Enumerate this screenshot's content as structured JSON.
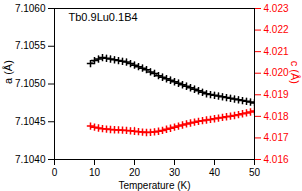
{
  "chart_data": {
    "type": "line",
    "title": "Tb0.9Lu0.1B4",
    "xlabel": "Temperature (K)",
    "ylabel": "a (Å)",
    "y2label": "c (Å)",
    "xlim": [
      0,
      50
    ],
    "xticks": [
      0,
      10,
      20,
      30,
      40,
      50
    ],
    "ylim": [
      7.104,
      7.106
    ],
    "yticks": [
      {
        "value": 7.104,
        "label": "7.1040"
      },
      7.1045,
      {
        "value": 7.105,
        "label": "7.1050"
      },
      7.1055,
      {
        "value": 7.106,
        "label": "7.1060"
      }
    ],
    "y2lim": [
      4.016,
      4.023
    ],
    "y2ticks": [
      4.016,
      4.017,
      4.018,
      4.019,
      {
        "value": 4.02,
        "label": "4.020"
      },
      4.021,
      4.022,
      4.023
    ],
    "x": [
      9,
      10,
      11,
      12,
      13,
      14,
      15,
      16,
      17,
      18,
      19,
      20,
      21,
      22,
      23,
      24,
      25,
      26,
      27,
      28,
      29,
      30,
      31,
      32,
      33,
      34,
      35,
      36,
      37,
      38,
      39,
      40,
      41,
      42,
      43,
      44,
      45,
      46,
      47,
      48,
      49,
      50
    ],
    "series": [
      {
        "color": "#000000",
        "marker": "plus",
        "line_style": "solid",
        "axis": "y",
        "values": [
          7.10527,
          7.10531,
          7.10533,
          7.10535,
          7.10534,
          7.10533,
          7.10532,
          7.10531,
          7.1053,
          7.10529,
          7.10527,
          7.10525,
          7.10523,
          7.10521,
          7.10519,
          7.10516,
          7.10514,
          7.10511,
          7.10509,
          7.10507,
          7.10505,
          7.10503,
          7.10501,
          7.10499,
          7.10497,
          7.10495,
          7.10493,
          7.10491,
          7.10489,
          7.10487,
          7.10486,
          7.10485,
          7.10484,
          7.10483,
          7.10482,
          7.10481,
          7.1048,
          7.10479,
          7.10478,
          7.10477,
          7.10476,
          7.10475
        ],
        "errors": [
          4e-05,
          4e-05,
          4e-05,
          4e-05,
          4e-05,
          4e-05,
          4e-05,
          4e-05,
          4e-05,
          4e-05,
          4e-05,
          4e-05,
          4e-05,
          4e-05,
          4e-05,
          4e-05,
          4e-05,
          4e-05,
          4e-05,
          4e-05,
          4e-05,
          4e-05,
          4e-05,
          4e-05,
          4e-05,
          4e-05,
          4e-05,
          4e-05,
          4e-05,
          4e-05,
          4e-05,
          4e-05,
          4e-05,
          4e-05,
          4e-05,
          4e-05,
          4e-05,
          4e-05,
          4e-05,
          4e-05,
          4e-05,
          4e-05
        ]
      },
      {
        "color": "#ff0000",
        "marker": "plus",
        "line_style": "solid",
        "axis": "y2",
        "values": [
          4.01755,
          4.0175,
          4.01746,
          4.01743,
          4.01741,
          4.01739,
          4.01738,
          4.01737,
          4.01736,
          4.01735,
          4.01733,
          4.01731,
          4.01729,
          4.01727,
          4.01725,
          4.01726,
          4.01728,
          4.01731,
          4.01735,
          4.0174,
          4.01745,
          4.0175,
          4.01755,
          4.0176,
          4.01765,
          4.01769,
          4.01773,
          4.01777,
          4.0178,
          4.01783,
          4.01786,
          4.01789,
          4.01792,
          4.01795,
          4.01798,
          4.01801,
          4.01804,
          4.01808,
          4.01812,
          4.01816,
          4.0182,
          4.01825
        ],
        "errors": [
          0.00012,
          0.00012,
          0.00012,
          0.00012,
          0.00012,
          0.00012,
          0.00012,
          0.00012,
          0.00012,
          0.00012,
          0.00012,
          0.00018,
          0.00012,
          0.00012,
          0.00012,
          0.00012,
          0.00012,
          0.00012,
          0.00012,
          0.00012,
          0.00012,
          0.00012,
          0.00012,
          0.00012,
          0.00012,
          0.00012,
          0.00012,
          0.00012,
          0.00012,
          0.00012,
          0.00012,
          0.00012,
          0.00012,
          0.00012,
          0.00012,
          0.00012,
          0.00012,
          0.00012,
          0.00012,
          0.00012,
          0.00012,
          0.00012
        ]
      }
    ]
  }
}
